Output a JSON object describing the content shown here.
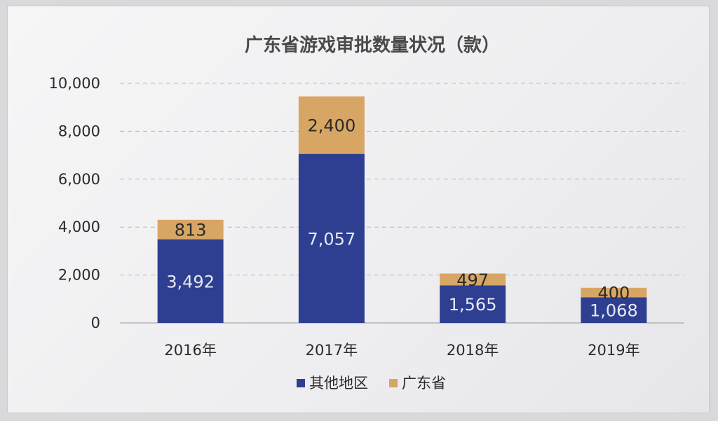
{
  "chart_data": {
    "type": "bar",
    "stacked": true,
    "title": "广东省游戏审批数量状况（款）",
    "categories": [
      "2016年",
      "2017年",
      "2018年",
      "2019年"
    ],
    "series": [
      {
        "name": "其他地区",
        "values": [
          3492,
          7057,
          1565,
          1068
        ],
        "color": "#2e3f92"
      },
      {
        "name": "广东省",
        "values": [
          813,
          2400,
          497,
          400
        ],
        "color": "#d8a664"
      }
    ],
    "data_labels": {
      "其他地区": [
        "3,492",
        "7,057",
        "1,565",
        "1,068"
      ],
      "广东省": [
        "813",
        "2,400",
        "497",
        "400"
      ]
    },
    "ylim": [
      0,
      10000
    ],
    "yticks": [
      0,
      2000,
      4000,
      6000,
      8000,
      10000
    ],
    "ytick_labels": [
      "0",
      "2,000",
      "4,000",
      "6,000",
      "8,000",
      "10,000"
    ],
    "grid": true,
    "legend_position": "bottom"
  }
}
